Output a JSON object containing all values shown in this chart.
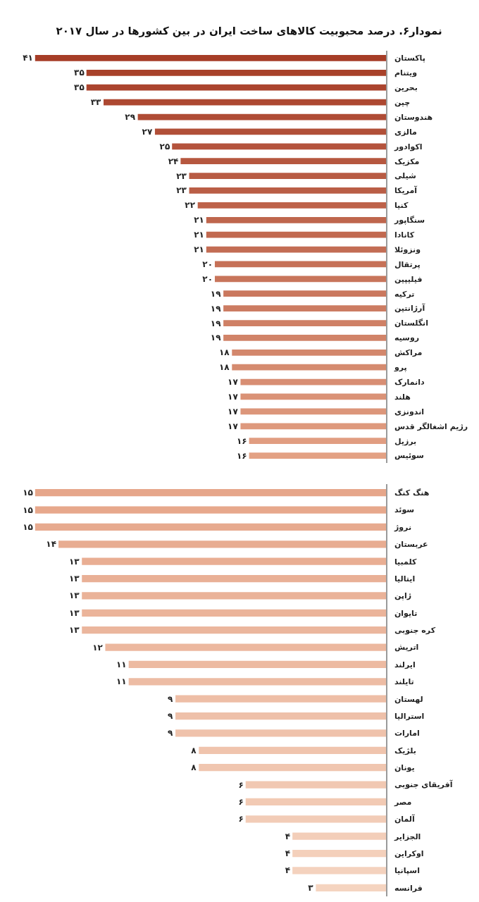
{
  "chart_data": [
    {
      "type": "bar",
      "orientation": "horizontal",
      "title": "نمودار۶. درصد محبوبیت کالاهای ساخت ایران در بین کشورها در سال ۲۰۱۷",
      "tick_labels": "y",
      "categories": [
        "پاکستان",
        "ویتنام",
        "بحرین",
        "چین",
        "هندوستان",
        "مالزی",
        "اکوادور",
        "مکزیک",
        "شیلی",
        "آمریکا",
        "کنیا",
        "سنگاپور",
        "کانادا",
        "ونزوئلا",
        "پرتقال",
        "فیلیپین",
        "ترکیه",
        "آرژانتین",
        "انگلستان",
        "روسیه",
        "مراکش",
        "پرو",
        "دانمارک",
        "هلند",
        "اندونزی",
        "رژیم اشغالگر قدس",
        "برزیل",
        "سوئیس"
      ],
      "values": [
        41,
        35,
        35,
        33,
        29,
        27,
        25,
        24,
        23,
        23,
        22,
        21,
        21,
        21,
        20,
        20,
        19,
        19,
        19,
        19,
        18,
        18,
        17,
        17,
        17,
        17,
        16,
        16
      ],
      "value_labels": [
        "۴۱",
        "۳۵",
        "۳۵",
        "۳۳",
        "۲۹",
        "۲۷",
        "۲۵",
        "۲۴",
        "۲۳",
        "۲۳",
        "۲۲",
        "۲۱",
        "۲۱",
        "۲۱",
        "۲۰",
        "۲۰",
        "۱۹",
        "۱۹",
        "۱۹",
        "۱۹",
        "۱۸",
        "۱۸",
        "۱۷",
        "۱۷",
        "۱۷",
        "۱۷",
        "۱۶",
        "۱۶"
      ],
      "colors": [
        "#a63d27",
        "#a8412a",
        "#ab442e",
        "#ad4831",
        "#af4c35",
        "#b14f38",
        "#b4533c",
        "#b6573f",
        "#b85b43",
        "#ba5e46",
        "#bd6249",
        "#bf664d",
        "#c16950",
        "#c36d54",
        "#c67157",
        "#c8755b",
        "#ca785e",
        "#cc7c62",
        "#cf8065",
        "#d18368",
        "#d3876c",
        "#d58b6f",
        "#d88e73",
        "#da9276",
        "#dc967a",
        "#de997d",
        "#e19d81",
        "#e3a184"
      ]
    },
    {
      "type": "bar",
      "orientation": "horizontal",
      "tick_labels": "y",
      "categories": [
        "هنگ کنگ",
        "سوئد",
        "نروژ",
        "عربستان",
        "کلمبیا",
        "ایتالیا",
        "ژاپن",
        "تایوان",
        "کره جنوبی",
        "اتریش",
        "ایرلند",
        "تایلند",
        "لهستان",
        "استرالیا",
        "امارات",
        "بلژیک",
        "یونان",
        "آفریقای جنوبی",
        "مصر",
        "آلمان",
        "الجزایر",
        "اوکراین",
        "اسپانیا",
        "فرانسه"
      ],
      "values": [
        15,
        15,
        15,
        14,
        13,
        13,
        13,
        13,
        13,
        12,
        11,
        11,
        9,
        9,
        9,
        8,
        8,
        6,
        6,
        6,
        4,
        4,
        4,
        3
      ],
      "value_labels": [
        "۱۵",
        "۱۵",
        "۱۵",
        "۱۴",
        "۱۳",
        "۱۳",
        "۱۳",
        "۱۳",
        "۱۳",
        "۱۲",
        "۱۱",
        "۱۱",
        "۹",
        "۹",
        "۹",
        "۸",
        "۸",
        "۶",
        "۶",
        "۶",
        "۴",
        "۴",
        "۴",
        "۳"
      ],
      "colors": [
        "#e6a68a",
        "#e7a88c",
        "#e7aa8f",
        "#e8ac91",
        "#e9ae93",
        "#e9b096",
        "#eab298",
        "#ebb49a",
        "#ebb69d",
        "#ecb89f",
        "#edbaa1",
        "#edbca4",
        "#eebea6",
        "#eec0a9",
        "#efc2ab",
        "#f0c4ad",
        "#f0c6b0",
        "#f1c8b2",
        "#f2cab4",
        "#f2ccb7",
        "#f3ceb9",
        "#f4d0bb",
        "#f4d2be",
        "#f5d4c0"
      ]
    }
  ]
}
